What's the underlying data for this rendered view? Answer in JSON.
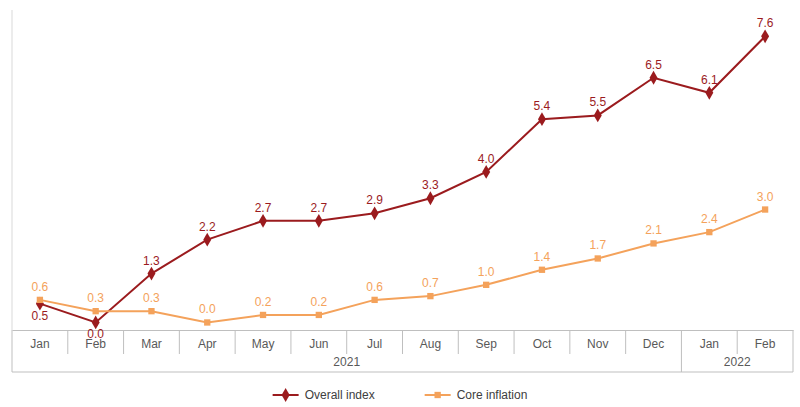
{
  "chart_data": {
    "type": "line",
    "categories": [
      "Jan",
      "Feb",
      "Mar",
      "Apr",
      "May",
      "Jun",
      "Jul",
      "Aug",
      "Sep",
      "Oct",
      "Nov",
      "Dec",
      "Jan",
      "Feb"
    ],
    "category_groups": [
      {
        "label": "2021",
        "count": 12
      },
      {
        "label": "2022",
        "count": 2
      }
    ],
    "series": [
      {
        "name": "Overall index",
        "color": "#9b1b1e",
        "marker": "diamond",
        "line_style": "solid",
        "values": [
          0.5,
          0.0,
          1.3,
          2.2,
          2.7,
          2.7,
          2.9,
          3.3,
          4.0,
          5.4,
          5.5,
          6.5,
          6.1,
          7.6
        ],
        "value_labels": [
          "0.5",
          "0.0",
          "1.3",
          "2.2",
          "2.7",
          "2.7",
          "2.9",
          "3.3",
          "4.0",
          "5.4",
          "5.5",
          "6.5",
          "6.1",
          "7.6"
        ]
      },
      {
        "name": "Core inflation",
        "color": "#f4a25b",
        "marker": "square",
        "line_style": "solid",
        "values": [
          0.6,
          0.3,
          0.3,
          0.0,
          0.2,
          0.2,
          0.6,
          0.7,
          1.0,
          1.4,
          1.7,
          2.1,
          2.4,
          3.0
        ],
        "value_labels": [
          "0.6",
          "0.3",
          "0.3",
          "0.0",
          "0.2",
          "0.2",
          "0.6",
          "0.7",
          "1.0",
          "1.4",
          "1.7",
          "2.1",
          "2.4",
          "3.0"
        ]
      }
    ],
    "ylim": [
      -0.2,
      8.3
    ],
    "grid": false,
    "data_labels": true,
    "tick_labels": "x",
    "legend": "bottom"
  }
}
